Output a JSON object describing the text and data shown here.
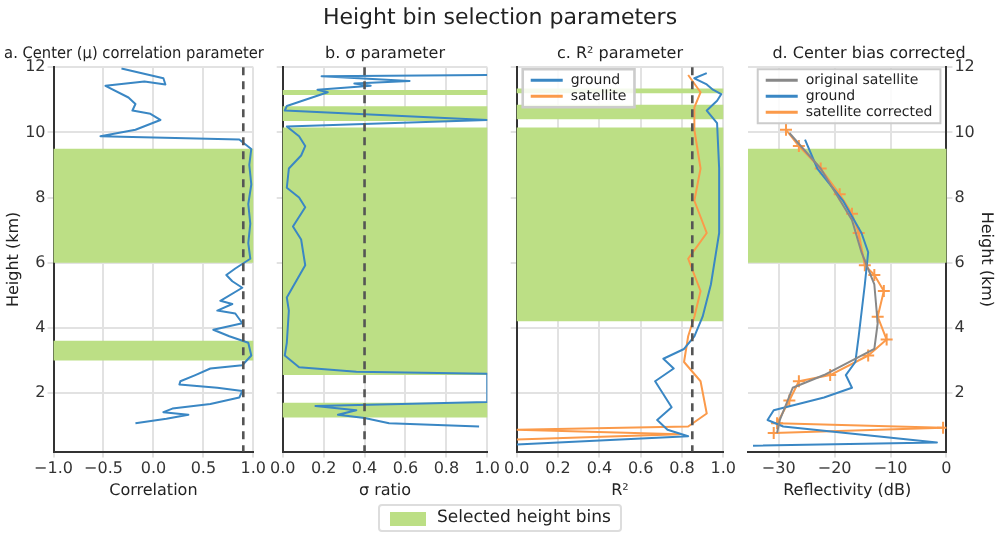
{
  "chart_data": [
    {
      "type": "other",
      "title": "Height bin selection parameters"
    },
    {
      "type": "line",
      "title": "a. Center (μ) correlation parameter",
      "xlabel": "Correlation",
      "ylabel": "Height (km)",
      "xlim": [
        -1,
        1
      ],
      "xticks": [
        {
          "value": -1,
          "label": "−1.0"
        },
        {
          "value": -0.5,
          "label": "−0.5"
        },
        {
          "value": 0,
          "label": "0.0"
        },
        {
          "value": 0.5,
          "label": "0.5"
        },
        {
          "value": 1,
          "label": "1.0"
        }
      ],
      "ylim": [
        0.2,
        12
      ],
      "yticks": [
        2,
        4,
        6,
        8,
        10,
        12
      ],
      "grid": true,
      "legend": "bottom",
      "series": [
        {
          "color": "#3a87c4",
          "x": [
            -0.32,
            0.1,
            0.12,
            -0.09,
            -0.48,
            -0.25,
            -0.18,
            -0.21,
            -0.03,
            0.07,
            -0.18,
            -0.53,
            0.86,
            0.9,
            0.98,
            0.96,
            0.98,
            0.95,
            0.97,
            0.95,
            0.97,
            0.92,
            0.82,
            0.73,
            0.79,
            0.89,
            0.67,
            0.79,
            0.64,
            0.82,
            0.89,
            0.6,
            0.76,
            0.95,
            0.98,
            0.89,
            0.57,
            0.42,
            0.27,
            0.26,
            0.64,
            0.89,
            0.86,
            0.57,
            0.19,
            0.1,
            0.35,
            0.13,
            -0.18
          ],
          "values": [
            11.96,
            11.66,
            11.47,
            11.56,
            11.43,
            11.07,
            10.87,
            10.67,
            10.57,
            10.38,
            10.08,
            9.88,
            9.78,
            9.68,
            9.49,
            9.0,
            8.4,
            7.8,
            7.2,
            6.6,
            6.12,
            6.02,
            5.82,
            5.62,
            5.43,
            5.23,
            4.83,
            4.73,
            4.53,
            4.44,
            4.14,
            3.94,
            3.74,
            3.54,
            3.15,
            2.85,
            2.75,
            2.55,
            2.36,
            2.26,
            2.16,
            2.06,
            1.86,
            1.66,
            1.52,
            1.41,
            1.33,
            1.21,
            1.07
          ]
        }
      ],
      "ref_lines": [
        {
          "axis": "x",
          "value": 0.9,
          "color": "#555555",
          "line_style": "dashed"
        }
      ],
      "bands": [
        {
          "axis": "y",
          "from": 6,
          "to": 9.5,
          "label": "Selected height bins",
          "color": "#bcdf85"
        },
        {
          "axis": "y",
          "from": 3,
          "to": 3.6,
          "color": "#bcdf85"
        }
      ]
    },
    {
      "type": "line",
      "title": "b. σ parameter",
      "xlabel": "σ ratio",
      "xlim": [
        0,
        1
      ],
      "xticks": [
        {
          "value": 0,
          "label": "0.0"
        },
        {
          "value": 0.2,
          "label": "0.2"
        },
        {
          "value": 0.4,
          "label": "0.4"
        },
        {
          "value": 0.6,
          "label": "0.6"
        },
        {
          "value": 0.8,
          "label": "0.8"
        },
        {
          "value": 1,
          "label": "1.0"
        }
      ],
      "ylim": [
        0.2,
        12
      ],
      "yticks": [
        2,
        4,
        6,
        8,
        10,
        12
      ],
      "grid": true,
      "tick_labels": "x",
      "series": [
        {
          "color": "#3a87c4",
          "x": [
            1.0,
            0.19,
            0.62,
            0.35,
            0.43,
            0.17,
            0.22,
            0.02,
            0.01,
            1.0,
            0.02,
            0.08,
            0.11,
            0.09,
            0.03,
            0.02,
            0.08,
            0.11,
            0.05,
            0.09,
            0.11,
            0.02,
            0.03,
            0.02,
            0.01,
            0.08,
            0.36,
            1.0,
            1.0,
            0.16,
            0.36,
            0.27,
            0.4,
            0.52,
            0.96
          ],
          "values": [
            11.76,
            11.72,
            11.58,
            11.5,
            11.43,
            11.31,
            11.23,
            10.81,
            10.67,
            10.38,
            10.18,
            9.88,
            9.58,
            9.29,
            8.89,
            8.3,
            8.0,
            7.7,
            7.11,
            6.71,
            5.92,
            4.93,
            4.53,
            3.54,
            3.15,
            2.79,
            2.65,
            2.59,
            1.72,
            1.6,
            1.47,
            1.33,
            1.23,
            1.07,
            0.97
          ]
        }
      ],
      "ref_lines": [
        {
          "axis": "x",
          "value": 0.4,
          "color": "#555555",
          "line_style": "dashed"
        }
      ],
      "bands": [
        {
          "axis": "y",
          "from": 11.15,
          "to": 11.3,
          "color": "#bcdf85"
        },
        {
          "axis": "y",
          "from": 10.35,
          "to": 10.8,
          "color": "#bcdf85"
        },
        {
          "axis": "y",
          "from": 2.55,
          "to": 10.15,
          "color": "#bcdf85"
        },
        {
          "axis": "y",
          "from": 1.25,
          "to": 1.7,
          "color": "#bcdf85"
        }
      ]
    },
    {
      "type": "line",
      "title": "c. R² parameter",
      "xlabel": "R²",
      "xlim": [
        0,
        1
      ],
      "xticks": [
        {
          "value": 0,
          "label": "0.0"
        },
        {
          "value": 0.2,
          "label": "0.2"
        },
        {
          "value": 0.4,
          "label": "0.4"
        },
        {
          "value": 0.6,
          "label": "0.6"
        },
        {
          "value": 0.8,
          "label": "0.8"
        },
        {
          "value": 1,
          "label": "1.0"
        }
      ],
      "ylim": [
        0.2,
        12
      ],
      "yticks": [
        2,
        4,
        6,
        8,
        10,
        12
      ],
      "grid": true,
      "tick_labels": "x",
      "legend": "top left",
      "series": [
        {
          "name": "ground",
          "color": "#3a87c4",
          "x": [
            0.92,
            0.86,
            0.92,
            0.95,
            0.99,
            0.97,
            0.92,
            0.97,
            0.98,
            0.98,
            0.94,
            0.9,
            0.86,
            0.81,
            0.71,
            0.76,
            0.67,
            0.71,
            0.75,
            0.68,
            0.73,
            0.83,
            0.0
          ],
          "values": [
            11.82,
            11.66,
            11.47,
            11.31,
            11.17,
            10.97,
            10.67,
            10.28,
            8.89,
            6.91,
            5.33,
            4.34,
            3.74,
            3.35,
            3.05,
            2.75,
            2.36,
            1.96,
            1.56,
            1.17,
            0.87,
            0.67,
            0.42
          ]
        },
        {
          "name": "satellite",
          "color": "#fb9a4a",
          "x": [
            0.83,
            0.89,
            0.86,
            0.86,
            0.89,
            0.86,
            0.92,
            0.83,
            0.89,
            0.86,
            0.83,
            0.81,
            0.89,
            0.92,
            0.83,
            0.0,
            0.79,
            0.0
          ],
          "values": [
            11.76,
            11.23,
            10.77,
            10.08,
            8.89,
            7.9,
            6.91,
            6.12,
            5.13,
            4.34,
            3.74,
            2.95,
            2.36,
            1.37,
            0.97,
            0.87,
            0.73,
            0.57
          ]
        }
      ],
      "ref_lines": [
        {
          "axis": "x",
          "value": 0.85,
          "color": "#555555",
          "line_style": "dashed"
        }
      ],
      "bands": [
        {
          "axis": "y",
          "from": 11.2,
          "to": 11.35,
          "color": "#bcdf85"
        },
        {
          "axis": "y",
          "from": 10.4,
          "to": 10.85,
          "color": "#bcdf85"
        },
        {
          "axis": "y",
          "from": 4.2,
          "to": 10.15,
          "color": "#bcdf85"
        }
      ]
    },
    {
      "type": "line",
      "title": "d. Center bias corrected",
      "xlabel": "Reflectivity (dB)",
      "ylabel": "Height (km)",
      "xlim": [
        -35.5,
        0
      ],
      "xticks": [
        {
          "value": -30,
          "label": "−30"
        },
        {
          "value": -20,
          "label": "−20"
        },
        {
          "value": -10,
          "label": "−10"
        },
        0
      ],
      "ylim": [
        0.2,
        12
      ],
      "yticks": [
        2,
        4,
        6,
        8,
        10,
        12
      ],
      "grid": true,
      "legend": "top right",
      "series": [
        {
          "name": "original satellite",
          "color": "#888888",
          "x": [
            -28.1,
            -22.5,
            -16.9,
            -15.2,
            -12.9,
            -12.3,
            -12.9,
            -21.9,
            -27.5,
            -29.8,
            -30.3
          ],
          "values": [
            9.98,
            8.89,
            7.31,
            6.32,
            5.33,
            4.14,
            3.35,
            2.55,
            2.16,
            1.17,
            0.77
          ]
        },
        {
          "name": "ground",
          "color": "#3a87c4",
          "x": [
            -25.3,
            -23.1,
            -18.5,
            -15.2,
            -14.0,
            -14.6,
            -15.7,
            -16.3,
            -18.0,
            -16.9,
            -21.9,
            -30.9,
            -32.0,
            -29.2,
            -1.7,
            -34.6
          ],
          "values": [
            9.78,
            8.89,
            7.9,
            6.91,
            6.32,
            5.33,
            3.74,
            2.95,
            2.55,
            2.16,
            1.86,
            1.47,
            1.17,
            0.97,
            0.48,
            0.38
          ]
        },
        {
          "name": "satellite corrected",
          "color": "#fb9a4a",
          "marker": "cross",
          "x": [
            -28.7,
            -26.4,
            -22.5,
            -19.1,
            -16.9,
            -15.7,
            -14.6,
            -12.9,
            -11.2,
            -12.3,
            -10.7,
            -14.0,
            -20.8,
            -26.4,
            -28.1,
            -30.3,
            -0.6,
            -30.9
          ],
          "values": [
            10.08,
            9.58,
            8.89,
            8.1,
            7.5,
            6.91,
            5.92,
            5.62,
            5.13,
            4.34,
            3.64,
            3.15,
            2.55,
            2.36,
            1.77,
            1.07,
            0.93,
            0.77
          ]
        }
      ],
      "bands": [
        {
          "axis": "y",
          "from": 6,
          "to": 9.5,
          "color": "#bcdf85"
        }
      ]
    }
  ]
}
